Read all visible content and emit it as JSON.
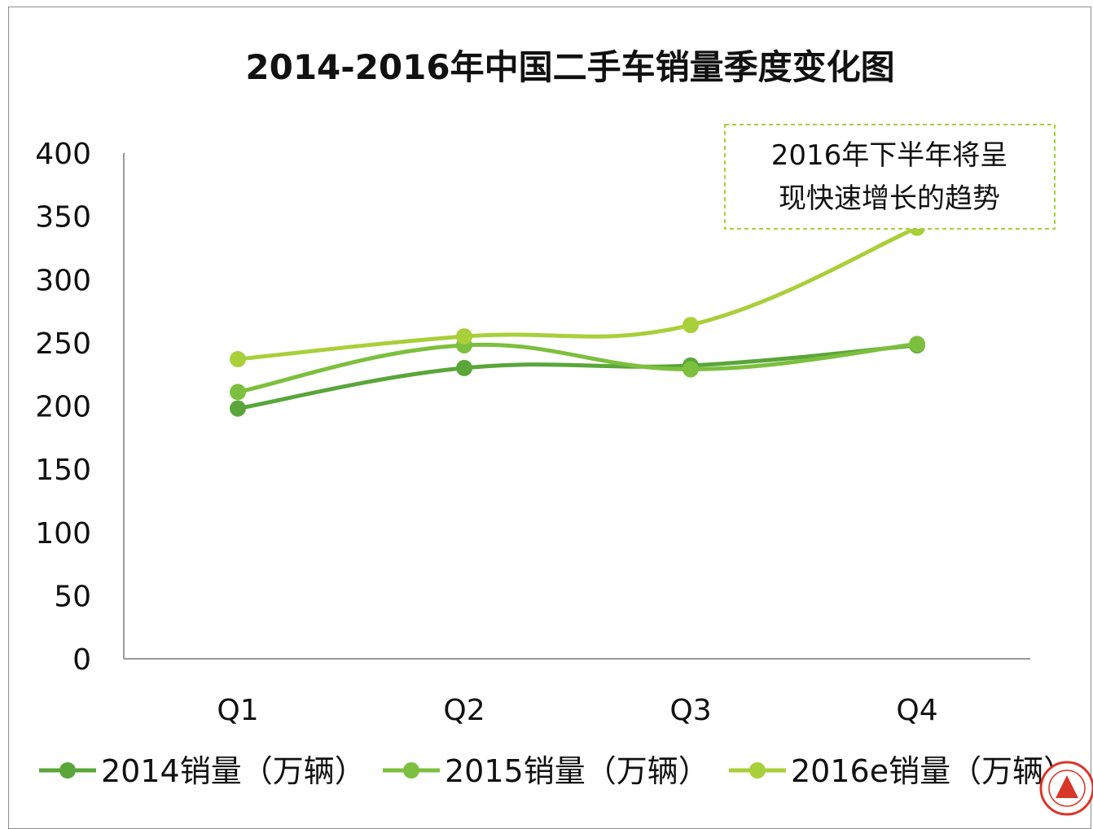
{
  "chart_data": {
    "type": "line",
    "title": "2014-2016年中国二手车销量季度变化图",
    "categories": [
      "Q1",
      "Q2",
      "Q3",
      "Q4"
    ],
    "ylim": [
      0,
      400
    ],
    "yticks": [
      0,
      50,
      100,
      150,
      200,
      250,
      300,
      350,
      400
    ],
    "grid": false,
    "legend_position": "bottom",
    "series": [
      {
        "name": "2014销量（万辆）",
        "values": [
          198,
          230,
          232,
          248
        ],
        "color": "#5aa63a"
      },
      {
        "name": "2015销量（万辆）",
        "values": [
          211,
          248,
          229,
          249
        ],
        "color": "#7dbf3e"
      },
      {
        "name": "2016e销量（万辆）",
        "values": [
          237,
          255,
          264,
          341
        ],
        "color": "#a9cf3a"
      }
    ],
    "annotation": {
      "lines": [
        "2016年下半年将呈",
        "现快速增长的趋势"
      ],
      "border_color": "#a9cf3a"
    }
  }
}
